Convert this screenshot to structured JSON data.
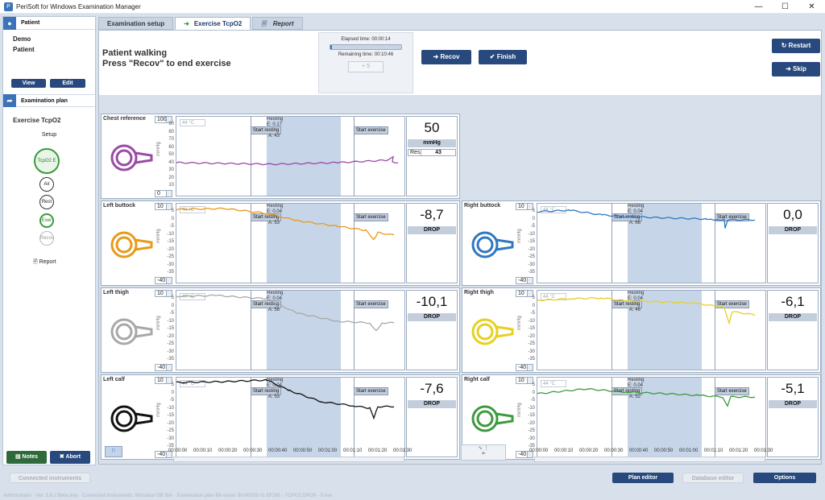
{
  "window": {
    "title": "PeriSoft for Windows Examination Manager",
    "min": "—",
    "max": "☐",
    "close": "✕"
  },
  "patient": {
    "header": "Patient",
    "first": "Demo",
    "last": "Patient",
    "view": "View",
    "edit": "Edit"
  },
  "plan": {
    "header": "Examination plan",
    "title": "Exercise TcpO2",
    "setup": "Setup",
    "steps": [
      "TcpO2 E",
      "Air",
      "Rest",
      "Exer",
      "Recov"
    ],
    "report": "Report"
  },
  "left_buttons": {
    "notes": "Notes",
    "abort": "Abort"
  },
  "tabs": [
    "Examination setup",
    "Exercise TcpO2",
    "Report"
  ],
  "instructions": {
    "line1": "Patient walking",
    "line2": "Press \"Recov\" to end exercise"
  },
  "timer": {
    "elapsed": "Elapsed time: 00:00:14",
    "remaining": "Remaining time: 00:10:46",
    "plus5": "+ 5",
    "progress": 0.02
  },
  "actions": {
    "recov": "Recov",
    "finish": "Finish",
    "restart": "Restart",
    "skip": "Skip"
  },
  "panel_common": {
    "temp": "44",
    "temp_unit": "°C",
    "unit": "mmHg",
    "start_resting": "Start resting",
    "start_exercise": "Start exercise",
    "resting": "Resting"
  },
  "panels": [
    {
      "name": "Chest reference",
      "top": "100",
      "bottom": "0",
      "ticks": [
        "90",
        "80",
        "70",
        "60",
        "50",
        "40",
        "30",
        "20",
        "10"
      ],
      "value": "50",
      "sub": "mmHg",
      "res_label": "Res",
      "res": "43",
      "a": "A: 43",
      "resting_v": "E: 0.17",
      "color": "#9b4aa6"
    },
    {
      "name": "Left buttock",
      "top": "10",
      "bottom": "-40",
      "ticks": [
        "5",
        "0",
        "-5",
        "-10",
        "-15",
        "-20",
        "-25",
        "-30",
        "-35"
      ],
      "value": "-8,7",
      "sub": "DROP",
      "a": "A: 53",
      "resting_v": "E: 0.04",
      "color": "#e89a1a"
    },
    {
      "name": "Right buttock",
      "top": "10",
      "bottom": "-40",
      "ticks": [
        "5",
        "0",
        "-5",
        "-10",
        "-15",
        "-20",
        "-25",
        "-30",
        "-35"
      ],
      "value": "0,0",
      "sub": "DROP",
      "a": "A: 66",
      "resting_v": "E: 0.04",
      "color": "#2f78c0"
    },
    {
      "name": "Left thigh",
      "top": "10",
      "bottom": "-40",
      "ticks": [
        "5",
        "0",
        "-5",
        "-10",
        "-15",
        "-20",
        "-25",
        "-30",
        "-35"
      ],
      "value": "-10,1",
      "sub": "DROP",
      "a": "A: 56",
      "resting_v": "E: 0.04",
      "color": "#a8a8a8"
    },
    {
      "name": "Right thigh",
      "top": "10",
      "bottom": "-40",
      "ticks": [
        "5",
        "0",
        "-5",
        "-10",
        "-15",
        "-20",
        "-25",
        "-30",
        "-35"
      ],
      "value": "-6,1",
      "sub": "DROP",
      "a": "A: 46",
      "resting_v": "E: 0.04",
      "color": "#e8d020"
    },
    {
      "name": "Left calf",
      "top": "10",
      "bottom": "-40",
      "ticks": [
        "5",
        "0",
        "-5",
        "-10",
        "-15",
        "-20",
        "-25",
        "-30",
        "-35"
      ],
      "value": "-7,6",
      "sub": "DROP",
      "a": "A: 53",
      "resting_v": "E: 0.04",
      "color": "#111111"
    },
    {
      "name": "Right calf",
      "top": "10",
      "bottom": "-40",
      "ticks": [
        "5",
        "0",
        "-5",
        "-10",
        "-15",
        "-20",
        "-25",
        "-30",
        "-35"
      ],
      "value": "-5,1",
      "sub": "DROP",
      "a": "A: 52",
      "resting_v": "E: 0.04",
      "color": "#3d9a3d"
    }
  ],
  "xaxis": [
    "00:00:00",
    "00:00:10",
    "00:00:20",
    "00:00:30",
    "00:00:40",
    "00:00:50",
    "00:01:00",
    "00:01:10",
    "00:01:20",
    "00:01:30"
  ],
  "bottom": {
    "connected": "Connected instruments",
    "plan_editor": "Plan editor",
    "database_editor": "Database editor",
    "options": "Options",
    "status": "Administrator · Ver. 5.6.2 Beta only · Connected instruments: Simulator DB Sim · Examination plan file name: 90-00026-01 BF381 - TCPO2 DROP - 0 exe"
  }
}
